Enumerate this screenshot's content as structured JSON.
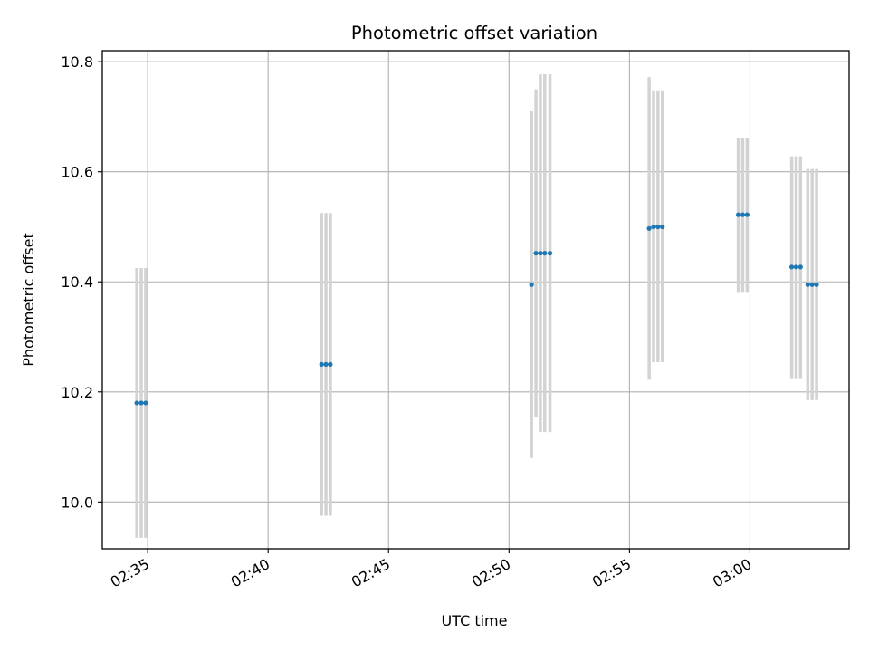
{
  "chart_data": {
    "type": "scatter",
    "title": "Photometric offset variation",
    "xlabel": "UTC time",
    "ylabel": "Photometric offset",
    "x_unit": "time (HH:MM, UTC)",
    "xlim": [
      "02:33:07",
      "03:04:07"
    ],
    "ylim": [
      9.915,
      10.82
    ],
    "grid": true,
    "marker_color": "#1f77b4",
    "errorbar_color": "#d3d3d3",
    "x_ticks": [
      "02:35",
      "02:40",
      "02:45",
      "02:50",
      "02:55",
      "03:00"
    ],
    "y_ticks": [
      "10.0",
      "10.2",
      "10.4",
      "10.6",
      "10.8"
    ],
    "points": [
      {
        "x": "02:34:33",
        "y": 10.18,
        "yerr_low": 9.935,
        "yerr_high": 10.425
      },
      {
        "x": "02:34:44",
        "y": 10.18,
        "yerr_low": 9.935,
        "yerr_high": 10.425
      },
      {
        "x": "02:34:55",
        "y": 10.18,
        "yerr_low": 9.935,
        "yerr_high": 10.425
      },
      {
        "x": "02:42:13",
        "y": 10.25,
        "yerr_low": 9.975,
        "yerr_high": 10.525
      },
      {
        "x": "02:42:24",
        "y": 10.25,
        "yerr_low": 9.975,
        "yerr_high": 10.525
      },
      {
        "x": "02:42:35",
        "y": 10.25,
        "yerr_low": 9.975,
        "yerr_high": 10.525
      },
      {
        "x": "02:50:56",
        "y": 10.395,
        "yerr_low": 10.08,
        "yerr_high": 10.71
      },
      {
        "x": "02:51:07",
        "y": 10.452,
        "yerr_low": 10.155,
        "yerr_high": 10.75
      },
      {
        "x": "02:51:18",
        "y": 10.452,
        "yerr_low": 10.127,
        "yerr_high": 10.777
      },
      {
        "x": "02:51:29",
        "y": 10.452,
        "yerr_low": 10.127,
        "yerr_high": 10.777
      },
      {
        "x": "02:51:42",
        "y": 10.452,
        "yerr_low": 10.127,
        "yerr_high": 10.777
      },
      {
        "x": "02:55:49",
        "y": 10.497,
        "yerr_low": 10.222,
        "yerr_high": 10.772
      },
      {
        "x": "02:56:00",
        "y": 10.5,
        "yerr_low": 10.254,
        "yerr_high": 10.748
      },
      {
        "x": "02:56:11",
        "y": 10.5,
        "yerr_low": 10.254,
        "yerr_high": 10.748
      },
      {
        "x": "02:56:22",
        "y": 10.5,
        "yerr_low": 10.254,
        "yerr_high": 10.748
      },
      {
        "x": "02:59:31",
        "y": 10.522,
        "yerr_low": 10.38,
        "yerr_high": 10.662
      },
      {
        "x": "02:59:42",
        "y": 10.522,
        "yerr_low": 10.38,
        "yerr_high": 10.662
      },
      {
        "x": "02:59:53",
        "y": 10.522,
        "yerr_low": 10.38,
        "yerr_high": 10.662
      },
      {
        "x": "03:01:44",
        "y": 10.427,
        "yerr_low": 10.225,
        "yerr_high": 10.628
      },
      {
        "x": "03:01:55",
        "y": 10.427,
        "yerr_low": 10.225,
        "yerr_high": 10.628
      },
      {
        "x": "03:02:06",
        "y": 10.427,
        "yerr_low": 10.225,
        "yerr_high": 10.628
      },
      {
        "x": "03:02:24",
        "y": 10.395,
        "yerr_low": 10.185,
        "yerr_high": 10.605
      },
      {
        "x": "03:02:35",
        "y": 10.395,
        "yerr_low": 10.185,
        "yerr_high": 10.605
      },
      {
        "x": "03:02:46",
        "y": 10.395,
        "yerr_low": 10.185,
        "yerr_high": 10.605
      }
    ]
  }
}
